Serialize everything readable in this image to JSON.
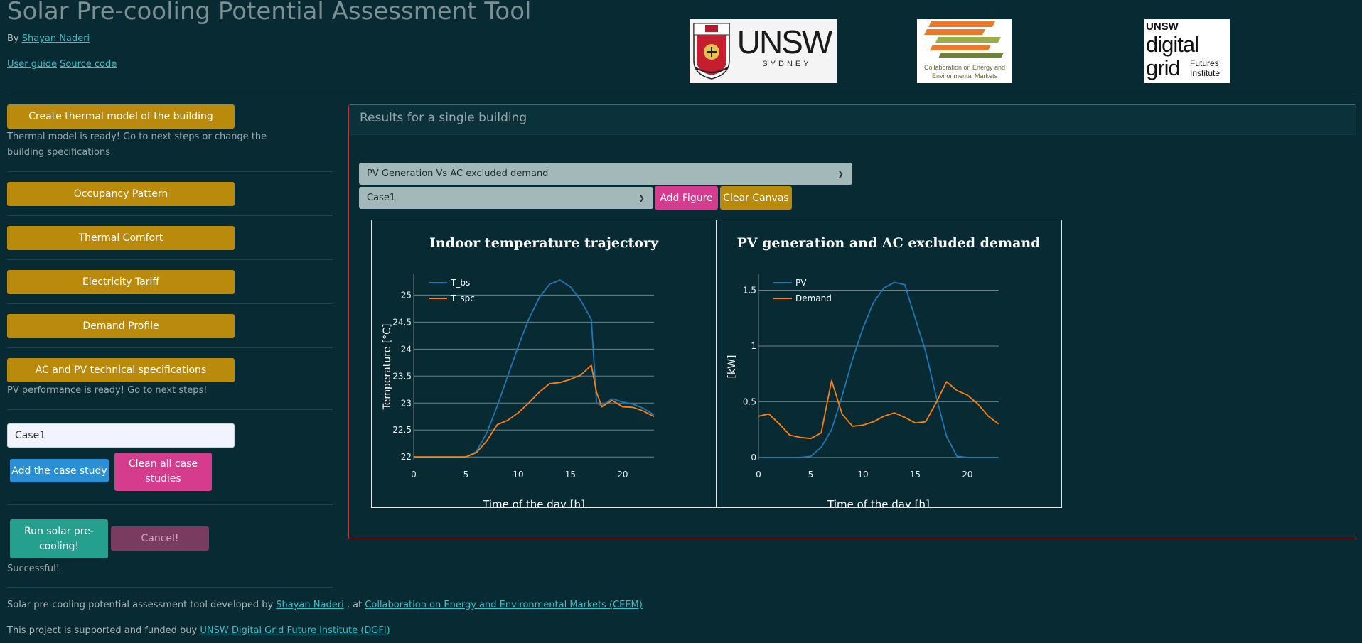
{
  "header": {
    "title": "Solar Pre-cooling Potential Assessment Tool",
    "by_prefix": "By",
    "author": "Shayan Naderi",
    "user_guide": "User guide",
    "source_code": "Source code"
  },
  "logos": {
    "unsw": {
      "name": "UNSW",
      "sub": "SYDNEY"
    },
    "ceem": {
      "line1": "Collaboration on Energy and",
      "line2": "Environmental Markets"
    },
    "dgfi": {
      "line1": "UNSW",
      "line2": "digital",
      "line3": "grid",
      "line4": "Futures",
      "line5": "Institute"
    }
  },
  "sidebar": {
    "create_model_label": "Create thermal model of the building",
    "model_status": "Thermal model is ready! Go to next steps or change the building specifications",
    "occupancy_label": "Occupancy Pattern",
    "comfort_label": "Thermal Comfort",
    "tariff_label": "Electricity Tariff",
    "demand_label": "Demand Profile",
    "acpv_label": "AC and PV technical specifications",
    "pv_status": "PV performance is ready! Go to next steps!",
    "case_input_value": "Case1",
    "add_case_label": "Add the case study",
    "clean_cases_label": "Clean all case studies",
    "run_label": "Run solar pre-cooling!",
    "cancel_label": "Cancel!",
    "run_status": "Successful!"
  },
  "panel": {
    "title": "Results for a single building",
    "figure_select": "PV Generation Vs AC excluded demand",
    "case_select": "Case1",
    "add_figure_label": "Add Figure",
    "clear_canvas_label": "Clear Canvas"
  },
  "footer": {
    "line1_prefix": "Solar pre-cooling potential assessment tool developed by",
    "line1_author": "Shayan Naderi",
    "line1_mid": ", at",
    "line1_org": "Collaboration on Energy and Environmental Markets (CEEM)",
    "line2_prefix": "This project is supported and funded buy",
    "line2_org": "UNSW Digital Grid Future Institute (DGFI)"
  },
  "colors": {
    "series1": "#1f77b4",
    "series2": "#ff7f0e"
  },
  "chart_data": [
    {
      "type": "line",
      "title": "Indoor temperature trajectory",
      "xlabel": "Time of the day [h]",
      "ylabel": "Temperature [°C]",
      "xlim": [
        0,
        23
      ],
      "ylim": [
        21.95,
        25.4
      ],
      "xticks": [
        0,
        5,
        10,
        15,
        20
      ],
      "yticks": [
        22,
        22.5,
        23,
        23.5,
        24,
        24.5,
        25
      ],
      "ytick_labels": [
        "22",
        "22.5",
        "23",
        "23.5",
        "24",
        "24.5",
        "25"
      ],
      "legend": "top-left",
      "grid": "horizontal",
      "x": [
        0,
        1,
        2,
        3,
        4,
        5,
        6,
        7,
        8,
        9,
        10,
        11,
        12,
        13,
        14,
        15,
        16,
        17,
        17.5,
        18,
        19,
        20,
        21,
        22,
        23
      ],
      "series": [
        {
          "name": "T_bs",
          "values": [
            22,
            22,
            22,
            22,
            22,
            22,
            22.1,
            22.45,
            22.95,
            23.5,
            24.05,
            24.55,
            24.95,
            25.2,
            25.28,
            25.15,
            24.9,
            24.55,
            23.0,
            22.95,
            23.08,
            23.02,
            22.98,
            22.9,
            22.78
          ]
        },
        {
          "name": "T_spc",
          "values": [
            22,
            22,
            22,
            22,
            22,
            22,
            22.08,
            22.3,
            22.6,
            22.68,
            22.82,
            23.0,
            23.2,
            23.36,
            23.38,
            23.44,
            23.52,
            23.7,
            23.2,
            22.93,
            23.05,
            22.93,
            22.92,
            22.85,
            22.75
          ]
        }
      ]
    },
    {
      "type": "line",
      "title": "PV generation and AC excluded demand",
      "xlabel": "Time of the day [h]",
      "ylabel": "[kW]",
      "xlim": [
        0,
        23
      ],
      "ylim": [
        -0.02,
        1.65
      ],
      "xticks": [
        0,
        5,
        10,
        15,
        20
      ],
      "yticks": [
        0,
        0.5,
        1,
        1.5
      ],
      "ytick_labels": [
        "0",
        "0.5",
        "1",
        "1.5"
      ],
      "legend": "top-left",
      "grid": "horizontal",
      "x": [
        0,
        1,
        2,
        3,
        4,
        5,
        6,
        7,
        8,
        9,
        10,
        11,
        12,
        13,
        14,
        15,
        16,
        17,
        18,
        19,
        20,
        21,
        22,
        23
      ],
      "series": [
        {
          "name": "PV",
          "values": [
            0,
            0,
            0,
            0,
            0,
            0.01,
            0.09,
            0.25,
            0.55,
            0.88,
            1.16,
            1.39,
            1.52,
            1.57,
            1.55,
            1.25,
            0.95,
            0.55,
            0.19,
            0.01,
            0,
            0,
            0,
            0
          ]
        },
        {
          "name": "Demand",
          "values": [
            0.37,
            0.39,
            0.3,
            0.2,
            0.18,
            0.17,
            0.22,
            0.69,
            0.39,
            0.28,
            0.29,
            0.32,
            0.37,
            0.4,
            0.36,
            0.31,
            0.32,
            0.49,
            0.68,
            0.6,
            0.56,
            0.48,
            0.37,
            0.3
          ]
        }
      ]
    }
  ]
}
